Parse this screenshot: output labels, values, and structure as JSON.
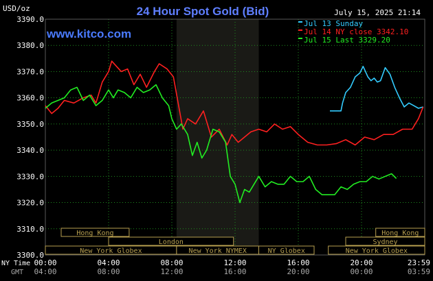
{
  "header": {
    "unit_label": "USD/oz",
    "title": "24 Hour Spot Gold (Bid)",
    "datetime": "July 15, 2025 21:14",
    "watermark": "www.kitco.com",
    "title_color": "#5F7FFF"
  },
  "footer": {
    "ny_time_label": "NY Time",
    "gmt_label": "GMT"
  },
  "colors": {
    "sunday": "#33CCFF",
    "ny_close": "#FF2020",
    "last": "#22EE22",
    "gold_box": "#B8A050",
    "grid": "#1F8F1F",
    "shade": "#1A1A16"
  },
  "sessions": {
    "row1": [
      "Hong Kong",
      "Hong Kong"
    ],
    "row2": [
      "London",
      "Sydney"
    ],
    "row3": [
      "New York Globex",
      "New York NYMEX",
      "NY Globex",
      "New York Globex"
    ]
  },
  "chart_data": {
    "type": "line",
    "title": "24 Hour Spot Gold (Bid)",
    "ylabel": "USD/oz",
    "ylim": [
      3300,
      3390
    ],
    "y_ticks": [
      "3390.0",
      "3380.0",
      "3370.0",
      "3360.0",
      "3350.0",
      "3340.0",
      "3330.0",
      "3320.0",
      "3310.0",
      "3300.0"
    ],
    "x_ticks_ny": [
      "00:00",
      "04:00",
      "08:00",
      "12:00",
      "16:00",
      "20:00",
      "23:59"
    ],
    "x_ticks_gmt": [
      "04:00",
      "08:00",
      "12:00",
      "16:00",
      "20:00",
      "00:00",
      "03:59"
    ],
    "xlim_hours": [
      0,
      24
    ],
    "shaded_hours": [
      8.3,
      13.5
    ],
    "grid": true,
    "legend_placement": "top-right",
    "series": [
      {
        "name": "Jul 13 Sunday",
        "legend": "Jul 13 Sunday",
        "x": [
          18.0,
          18.7,
          18.8,
          19.0,
          19.3,
          19.6,
          19.9,
          20.1,
          20.4,
          20.6,
          20.8,
          21.0,
          21.2,
          21.5,
          21.8,
          22.1,
          22.4,
          22.7,
          23.0,
          23.3,
          23.6,
          23.9
        ],
        "y": [
          3355.0,
          3355.0,
          3358.0,
          3362.0,
          3364.0,
          3368.0,
          3369.5,
          3372.0,
          3368.0,
          3366.5,
          3367.5,
          3366.0,
          3366.5,
          3371.5,
          3369.0,
          3364.0,
          3360.0,
          3356.5,
          3358.0,
          3357.0,
          3356.0,
          3356.5
        ]
      },
      {
        "name": "Jul 14 NY close 3342.10",
        "legend": "Jul 14 NY close 3342.10",
        "x": [
          0.0,
          0.4,
          0.8,
          1.2,
          1.8,
          2.4,
          2.9,
          3.2,
          3.6,
          4.0,
          4.2,
          4.5,
          4.8,
          5.2,
          5.6,
          6.0,
          6.4,
          6.9,
          7.2,
          7.7,
          8.1,
          8.4,
          8.7,
          9.0,
          9.5,
          10.0,
          10.5,
          11.0,
          11.5,
          11.8,
          12.2,
          12.6,
          13.0,
          13.5,
          14.0,
          14.5,
          15.0,
          15.5,
          16.0,
          16.6,
          17.2,
          17.8,
          18.4,
          19.0,
          19.6,
          20.2,
          20.8,
          21.4,
          22.0,
          22.6,
          23.2,
          23.6,
          23.9
        ],
        "y": [
          3357.0,
          3354.0,
          3356.0,
          3359.0,
          3358.0,
          3360.0,
          3361.0,
          3358.0,
          3366.0,
          3370.0,
          3374.0,
          3372.0,
          3370.0,
          3371.0,
          3365.0,
          3369.0,
          3364.0,
          3370.0,
          3373.0,
          3371.0,
          3368.0,
          3358.0,
          3348.0,
          3352.0,
          3350.0,
          3355.0,
          3345.0,
          3348.0,
          3342.0,
          3346.0,
          3343.0,
          3345.0,
          3347.0,
          3348.0,
          3347.0,
          3350.0,
          3348.0,
          3349.0,
          3346.0,
          3343.0,
          3342.0,
          3342.0,
          3342.5,
          3344.0,
          3342.0,
          3345.0,
          3344.0,
          3346.0,
          3346.0,
          3348.0,
          3348.0,
          3352.0,
          3356.5
        ]
      },
      {
        "name": "Jul 15 Last 3329.20",
        "legend": "Jul 15 Last 3329.20",
        "x": [
          0.0,
          0.4,
          0.8,
          1.2,
          1.6,
          2.0,
          2.4,
          2.8,
          3.2,
          3.6,
          4.0,
          4.3,
          4.6,
          5.0,
          5.4,
          5.8,
          6.2,
          6.6,
          7.0,
          7.4,
          7.8,
          8.0,
          8.3,
          8.6,
          9.0,
          9.3,
          9.6,
          9.9,
          10.2,
          10.6,
          11.0,
          11.4,
          11.7,
          12.0,
          12.3,
          12.6,
          12.9,
          13.2,
          13.5,
          13.9,
          14.3,
          14.7,
          15.1,
          15.5,
          15.9,
          16.3,
          16.7,
          17.1,
          17.5,
          17.9,
          18.3,
          18.7,
          19.1,
          19.5,
          19.9,
          20.3,
          20.7,
          21.1,
          21.5,
          21.9,
          22.2
        ],
        "y": [
          3356.0,
          3358.0,
          3359.0,
          3360.0,
          3363.0,
          3364.0,
          3359.0,
          3361.0,
          3357.0,
          3359.0,
          3363.0,
          3360.0,
          3363.0,
          3362.0,
          3360.0,
          3364.0,
          3362.0,
          3363.0,
          3365.0,
          3360.0,
          3357.0,
          3352.0,
          3348.0,
          3350.0,
          3346.0,
          3338.0,
          3343.0,
          3337.0,
          3340.0,
          3348.0,
          3347.0,
          3343.0,
          3330.0,
          3327.0,
          3320.0,
          3325.0,
          3324.0,
          3327.0,
          3330.0,
          3326.0,
          3328.0,
          3327.0,
          3327.0,
          3330.0,
          3328.0,
          3328.0,
          3330.0,
          3325.0,
          3323.0,
          3323.0,
          3323.0,
          3326.0,
          3325.0,
          3327.0,
          3328.0,
          3328.0,
          3330.0,
          3329.0,
          3330.0,
          3331.0,
          3329.2
        ]
      }
    ]
  }
}
